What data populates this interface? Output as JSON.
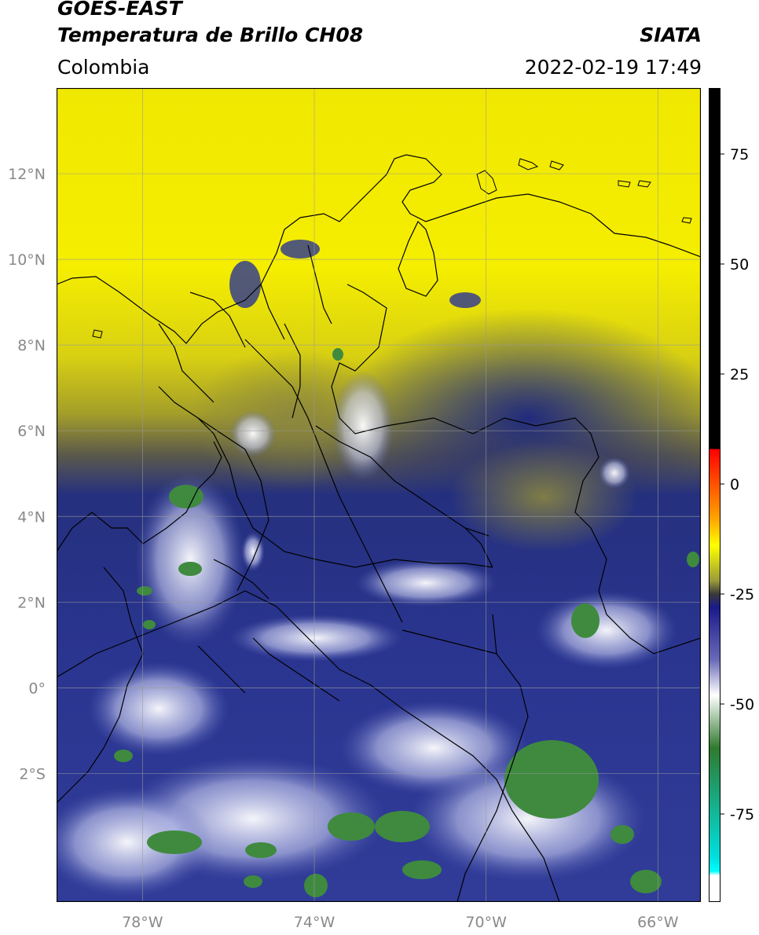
{
  "header": {
    "title_line1": "GOES-EAST",
    "title_line2": "Temperatura de Brillo CH08",
    "source": "SIATA",
    "region": "Colombia",
    "timestamp": "2022-02-19 17:49"
  },
  "map": {
    "lon_range": [
      -80,
      -65
    ],
    "lat_range": [
      -5,
      14
    ],
    "lat_ticks": [
      {
        "value": 12,
        "label": "12°N"
      },
      {
        "value": 10,
        "label": "10°N"
      },
      {
        "value": 8,
        "label": "8°N"
      },
      {
        "value": 6,
        "label": "6°N"
      },
      {
        "value": 4,
        "label": "4°N"
      },
      {
        "value": 2,
        "label": "2°N"
      },
      {
        "value": 0,
        "label": "0°"
      },
      {
        "value": -2,
        "label": "2°S"
      }
    ],
    "lon_ticks": [
      {
        "value": -78,
        "label": "78°W"
      },
      {
        "value": -74,
        "label": "74°W"
      },
      {
        "value": -70,
        "label": "70°W"
      },
      {
        "value": -66,
        "label": "66°W"
      }
    ],
    "grid": true,
    "colors": {
      "warm_yellow": "#f2ea00",
      "olive": "#8d8a3a",
      "dark_blue": "#1c2a8a",
      "mid_blue": "#4450a8",
      "white": "#f6f6ff",
      "green": "#3a8a3a"
    }
  },
  "colorbar": {
    "range": [
      -95,
      90
    ],
    "ticks": [
      {
        "value": 75,
        "label": "75"
      },
      {
        "value": 50,
        "label": "50"
      },
      {
        "value": 25,
        "label": "25"
      },
      {
        "value": 0,
        "label": "0"
      },
      {
        "value": -25,
        "label": "-25"
      },
      {
        "value": -50,
        "label": "-50"
      },
      {
        "value": -75,
        "label": "-75"
      }
    ],
    "stops": [
      {
        "value": 90,
        "color": "#000000"
      },
      {
        "value": 8,
        "color": "#000000"
      },
      {
        "value": 7.9,
        "color": "#ff0000"
      },
      {
        "value": -8,
        "color": "#ffa500"
      },
      {
        "value": -14,
        "color": "#ffff00"
      },
      {
        "value": -22,
        "color": "#9a9a3a"
      },
      {
        "value": -25,
        "color": "#3a3a3a"
      },
      {
        "value": -28,
        "color": "#1a1a8a"
      },
      {
        "value": -40,
        "color": "#6a6ab8"
      },
      {
        "value": -48,
        "color": "#ffffff"
      },
      {
        "value": -60,
        "color": "#2f7a2f"
      },
      {
        "value": -85,
        "color": "#00e0e0"
      },
      {
        "value": -88,
        "color": "#00ffff"
      },
      {
        "value": -89,
        "color": "#ffffff"
      },
      {
        "value": -95,
        "color": "#ffffff"
      }
    ]
  }
}
